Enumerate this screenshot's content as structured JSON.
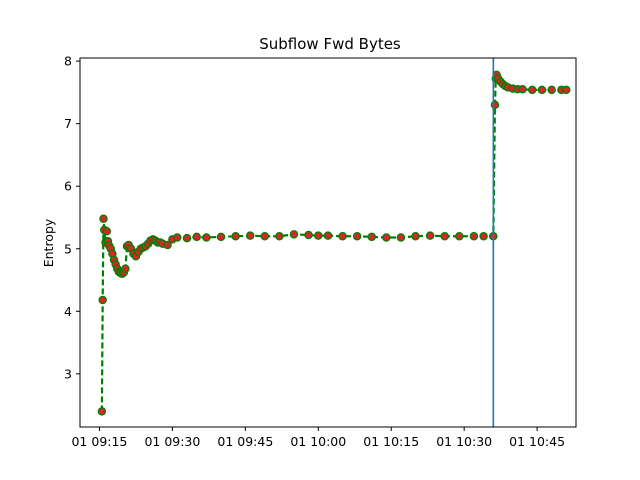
{
  "chart_data": {
    "type": "line",
    "title": "Subflow Fwd Bytes",
    "xlabel": "",
    "ylabel": "Entropy",
    "x_unit": "time (HH:MM, 1 Jan)",
    "xlim": [
      "09:11",
      "10:53"
    ],
    "ylim": [
      2.15,
      8.05
    ],
    "x_ticks": [
      "09:15",
      "09:30",
      "09:45",
      "10:00",
      "10:15",
      "10:30",
      "10:45"
    ],
    "x_tick_labels": [
      "01 09:15",
      "01 09:30",
      "01 09:45",
      "01 10:00",
      "01 10:15",
      "01 10:30",
      "01 10:45"
    ],
    "y_ticks": [
      3,
      4,
      5,
      6,
      7,
      8
    ],
    "y_tick_labels": [
      "3",
      "4",
      "5",
      "6",
      "7",
      "8"
    ],
    "grid": false,
    "vertical_line": {
      "x": "10:36",
      "color": "#1f77b4"
    },
    "series": [
      {
        "line_color": "#008000",
        "line_style": "dashed",
        "marker_face": "#d62728",
        "marker_edge": "#008000",
        "x": [
          "09:15:30",
          "09:15:40",
          "09:15:50",
          "09:16:00",
          "09:16:15",
          "09:16:30",
          "09:16:45",
          "09:17:00",
          "09:17:20",
          "09:17:40",
          "09:18:00",
          "09:18:20",
          "09:18:40",
          "09:19:00",
          "09:19:20",
          "09:19:40",
          "09:20:00",
          "09:20:20",
          "09:20:40",
          "09:21:00",
          "09:21:30",
          "09:22:00",
          "09:22:30",
          "09:23:00",
          "09:23:30",
          "09:24:00",
          "09:24:30",
          "09:25:00",
          "09:25:30",
          "09:26:00",
          "09:26:30",
          "09:27:00",
          "09:27:30",
          "09:28:00",
          "09:29:00",
          "09:30:00",
          "09:31:00",
          "09:33:00",
          "09:35:00",
          "09:37:00",
          "09:40:00",
          "09:43:00",
          "09:46:00",
          "09:49:00",
          "09:52:00",
          "09:55:00",
          "09:58:00",
          "10:00:00",
          "10:02:00",
          "10:05:00",
          "10:08:00",
          "10:11:00",
          "10:14:00",
          "10:17:00",
          "10:20:00",
          "10:23:00",
          "10:26:00",
          "10:29:00",
          "10:32:00",
          "10:34:00",
          "10:36:00",
          "10:36:20",
          "10:36:30",
          "10:36:40",
          "10:37:00",
          "10:37:30",
          "10:38:00",
          "10:38:30",
          "10:39:00",
          "10:40:00",
          "10:41:00",
          "10:42:00",
          "10:44:00",
          "10:46:00",
          "10:48:00",
          "10:50:00",
          "10:51:00"
        ],
        "y": [
          2.4,
          4.18,
          5.48,
          5.3,
          5.1,
          5.28,
          5.12,
          5.05,
          5.0,
          4.92,
          4.82,
          4.75,
          4.68,
          4.63,
          4.61,
          4.6,
          4.62,
          4.68,
          5.04,
          5.06,
          5.0,
          4.92,
          4.88,
          4.95,
          5.0,
          5.02,
          5.04,
          5.08,
          5.13,
          5.15,
          5.13,
          5.1,
          5.1,
          5.08,
          5.06,
          5.15,
          5.18,
          5.17,
          5.19,
          5.18,
          5.19,
          5.2,
          5.21,
          5.2,
          5.2,
          5.23,
          5.22,
          5.21,
          5.21,
          5.2,
          5.2,
          5.19,
          5.18,
          5.18,
          5.2,
          5.21,
          5.2,
          5.2,
          5.2,
          5.2,
          5.2,
          7.3,
          7.72,
          7.78,
          7.72,
          7.67,
          7.63,
          7.6,
          7.58,
          7.56,
          7.55,
          7.55,
          7.54,
          7.54,
          7.54,
          7.54,
          7.54
        ]
      }
    ]
  }
}
